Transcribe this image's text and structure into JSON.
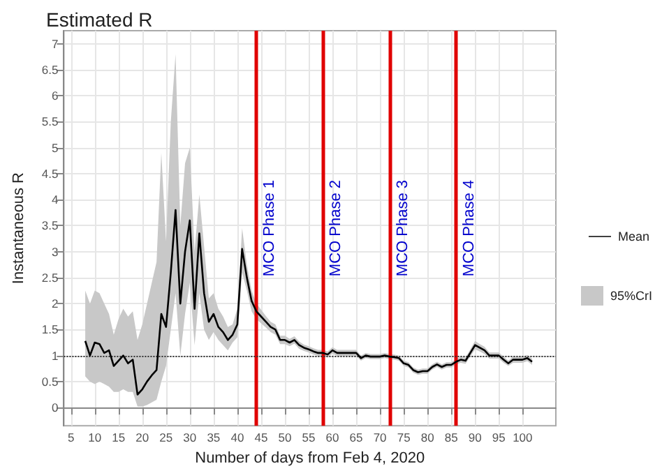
{
  "chart_data": {
    "type": "line",
    "title": "Estimated R",
    "xlabel": "Number of days from Feb 4, 2020",
    "ylabel": "Instantaneous R",
    "x": [
      8,
      9,
      10,
      11,
      12,
      13,
      14,
      15,
      16,
      17,
      18,
      19,
      20,
      21,
      22,
      23,
      24,
      25,
      26,
      27,
      28,
      29,
      30,
      31,
      32,
      33,
      34,
      35,
      36,
      37,
      38,
      39,
      40,
      41,
      42,
      43,
      44,
      45,
      46,
      47,
      48,
      49,
      50,
      51,
      52,
      53,
      54,
      55,
      56,
      57,
      58,
      59,
      60,
      61,
      62,
      63,
      64,
      65,
      66,
      67,
      68,
      69,
      70,
      71,
      72,
      73,
      74,
      75,
      76,
      77,
      78,
      79,
      80,
      81,
      82,
      83,
      84,
      85,
      86,
      87,
      88,
      89,
      90,
      91,
      92,
      93,
      94,
      95,
      96,
      97,
      98,
      99,
      100,
      101,
      102
    ],
    "series": [
      {
        "name": "Mean",
        "color": "#000000",
        "values": [
          1.28,
          1.0,
          1.25,
          1.22,
          1.05,
          1.1,
          0.8,
          0.9,
          1.0,
          0.85,
          0.92,
          0.25,
          0.35,
          0.5,
          0.62,
          0.72,
          1.8,
          1.55,
          2.6,
          3.8,
          2.0,
          3.0,
          3.6,
          1.9,
          3.35,
          2.2,
          1.65,
          1.8,
          1.55,
          1.45,
          1.3,
          1.4,
          1.6,
          3.05,
          2.5,
          2.05,
          1.85,
          1.75,
          1.65,
          1.55,
          1.5,
          1.3,
          1.3,
          1.25,
          1.3,
          1.2,
          1.15,
          1.12,
          1.08,
          1.05,
          1.05,
          1.02,
          1.1,
          1.05,
          1.05,
          1.05,
          1.05,
          1.05,
          0.95,
          1.0,
          0.98,
          0.98,
          0.98,
          1.0,
          0.98,
          0.97,
          0.95,
          0.85,
          0.82,
          0.72,
          0.68,
          0.7,
          0.7,
          0.78,
          0.83,
          0.78,
          0.82,
          0.82,
          0.88,
          0.92,
          0.9,
          1.05,
          1.2,
          1.15,
          1.1,
          1.0,
          1.0,
          1.0,
          0.92,
          0.85,
          0.92,
          0.92,
          0.92,
          0.95,
          0.88
        ],
        "upper": [
          2.25,
          2.0,
          2.25,
          2.2,
          2.0,
          1.8,
          1.4,
          1.7,
          1.9,
          1.75,
          1.85,
          1.3,
          1.6,
          2.0,
          2.4,
          2.8,
          4.9,
          3.2,
          5.5,
          6.8,
          3.5,
          4.7,
          5.0,
          3.0,
          4.1,
          3.1,
          2.1,
          2.2,
          1.9,
          1.75,
          1.55,
          1.6,
          1.9,
          3.45,
          2.75,
          2.25,
          2.0,
          1.88,
          1.76,
          1.65,
          1.6,
          1.38,
          1.38,
          1.32,
          1.37,
          1.27,
          1.21,
          1.18,
          1.14,
          1.11,
          1.11,
          1.08,
          1.16,
          1.11,
          1.11,
          1.11,
          1.11,
          1.11,
          1.0,
          1.05,
          1.03,
          1.03,
          1.03,
          1.05,
          1.03,
          1.02,
          1.0,
          0.9,
          0.87,
          0.77,
          0.73,
          0.75,
          0.75,
          0.83,
          0.88,
          0.83,
          0.87,
          0.87,
          0.93,
          0.98,
          0.96,
          1.12,
          1.28,
          1.22,
          1.17,
          1.06,
          1.06,
          1.06,
          0.98,
          0.9,
          0.98,
          0.98,
          0.98,
          1.01,
          0.94
        ],
        "lower": [
          0.6,
          0.5,
          0.45,
          0.5,
          0.45,
          0.4,
          0.3,
          0.3,
          0.35,
          0.3,
          0.3,
          0.02,
          0.02,
          0.05,
          0.1,
          0.15,
          0.5,
          0.8,
          1.5,
          2.2,
          1.0,
          1.8,
          2.4,
          1.2,
          2.2,
          1.5,
          1.3,
          1.45,
          1.3,
          1.2,
          1.1,
          1.25,
          1.35,
          2.6,
          2.25,
          1.85,
          1.7,
          1.62,
          1.54,
          1.45,
          1.4,
          1.22,
          1.22,
          1.18,
          1.23,
          1.13,
          1.09,
          1.06,
          1.02,
          0.99,
          0.99,
          0.96,
          1.04,
          0.99,
          0.99,
          0.99,
          0.99,
          0.99,
          0.9,
          0.95,
          0.93,
          0.93,
          0.93,
          0.95,
          0.93,
          0.92,
          0.9,
          0.8,
          0.77,
          0.67,
          0.63,
          0.65,
          0.65,
          0.73,
          0.78,
          0.73,
          0.77,
          0.77,
          0.83,
          0.86,
          0.84,
          0.98,
          1.12,
          1.08,
          1.03,
          0.94,
          0.94,
          0.94,
          0.86,
          0.8,
          0.86,
          0.86,
          0.86,
          0.89,
          0.82
        ]
      }
    ],
    "xlim": [
      3.5,
      107
    ],
    "xticks": [
      5,
      10,
      15,
      20,
      25,
      30,
      35,
      40,
      45,
      50,
      55,
      60,
      65,
      70,
      75,
      80,
      85,
      90,
      95,
      100
    ],
    "ylim": [
      -0.35,
      7.25
    ],
    "yticks": [
      0,
      0.5,
      1,
      1.5,
      2,
      2.5,
      3,
      3.5,
      4,
      4.5,
      5,
      5.5,
      6,
      6.5,
      7
    ],
    "ref_lines": [
      {
        "axis": "x",
        "value": 44,
        "label": "MCO Phase 1",
        "color": "#e00000"
      },
      {
        "axis": "x",
        "value": 58,
        "label": "MCO Phase 2",
        "color": "#e00000"
      },
      {
        "axis": "x",
        "value": 72,
        "label": "MCO Phase 3",
        "color": "#e00000"
      },
      {
        "axis": "x",
        "value": 86,
        "label": "MCO Phase 4",
        "color": "#e00000"
      },
      {
        "axis": "y",
        "value": 1,
        "label": null,
        "color": "#333333",
        "line_style": "dotted"
      }
    ],
    "annotations": [
      "95%CrI"
    ],
    "grid": true,
    "legend": "right",
    "marker": "none",
    "line_style": "solid"
  }
}
